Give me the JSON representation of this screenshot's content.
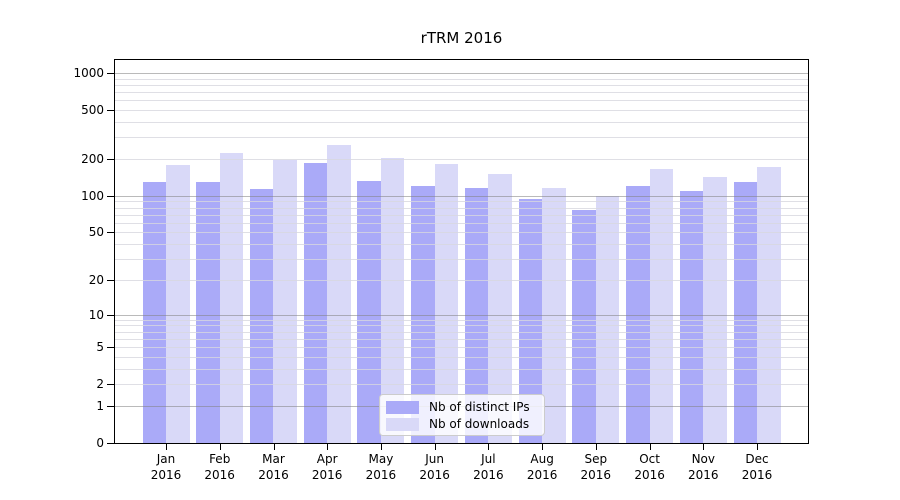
{
  "figure": {
    "background": "#ffffff"
  },
  "chart_data": {
    "type": "bar",
    "title": "rTRM 2016",
    "categories": [
      "Jan 2016",
      "Feb 2016",
      "Mar 2016",
      "Apr 2016",
      "May 2016",
      "Jun 2016",
      "Jul 2016",
      "Aug 2016",
      "Sep 2016",
      "Oct 2016",
      "Nov 2016",
      "Dec 2016"
    ],
    "month_labels": [
      "Jan",
      "Feb",
      "Mar",
      "Apr",
      "May",
      "Jun",
      "Jul",
      "Aug",
      "Sep",
      "Oct",
      "Nov",
      "Dec"
    ],
    "year_label": "2016",
    "series": [
      {
        "name": "Nb of distinct IPs",
        "color": "#aaaaf8",
        "values": [
          130,
          130,
          113,
          185,
          133,
          120,
          115,
          94,
          76,
          120,
          109,
          129
        ]
      },
      {
        "name": "Nb of downloads",
        "color": "#d9d9f8",
        "values": [
          178,
          223,
          195,
          259,
          203,
          181,
          150,
          115,
          99,
          166,
          142,
          171
        ]
      }
    ],
    "xlabel": "",
    "ylabel": "",
    "y_ticks": [
      0,
      1,
      2,
      5,
      10,
      20,
      50,
      100,
      200,
      500,
      1000
    ],
    "y_scale": "log10(1+x)",
    "ylim": [
      0,
      1325
    ],
    "grid": {
      "horizontal": true,
      "minor_log_lines": true,
      "major_gridline_color": "#a8a8a8",
      "minor_gridline_color": "#e6e6ea",
      "gridlines_over_bars": true
    },
    "legend": {
      "position": "inside-bottom-center",
      "items": [
        "Nb of distinct IPs",
        "Nb of downloads"
      ]
    }
  }
}
